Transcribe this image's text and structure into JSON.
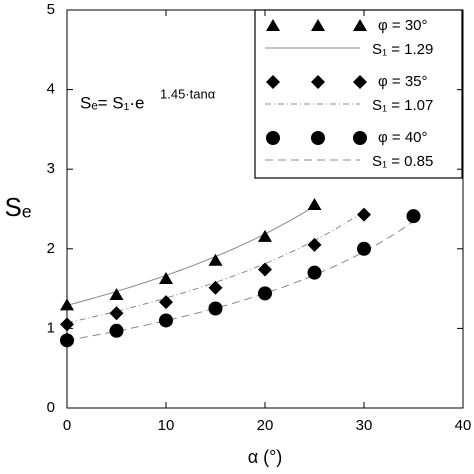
{
  "chart_data": {
    "type": "scatter",
    "xlabel": "α (°)",
    "ylabel": "Sₑ",
    "annotation": {
      "base": "Sₑ= S₁·e",
      "exponent": "1.45·tanα"
    },
    "fit_coefficient": 1.45,
    "xlim": [
      0,
      40
    ],
    "xticks": [
      0,
      10,
      20,
      30,
      40
    ],
    "ylim": [
      0,
      5
    ],
    "yticks": [
      0,
      1,
      2,
      3,
      4,
      5
    ],
    "legend": "upper right",
    "series": [
      {
        "name": "φ = 30°",
        "marker": "triangle",
        "color": "#000000",
        "line_style": "solid",
        "fit_label": {
          "value": 1.29,
          "label": "S₁ = 1.29"
        },
        "x": [
          0,
          5,
          10,
          15,
          20,
          25
        ],
        "values": [
          1.29,
          1.42,
          1.62,
          1.85,
          2.15,
          2.55
        ]
      },
      {
        "name": "φ = 35°",
        "marker": "diamond",
        "color": "#000000",
        "line_style": "dashdot",
        "fit_label": {
          "value": 1.07,
          "label": "S₁ = 1.07"
        },
        "x": [
          0,
          5,
          10,
          15,
          20,
          25,
          30
        ],
        "values": [
          1.05,
          1.19,
          1.33,
          1.51,
          1.74,
          2.05,
          2.43
        ]
      },
      {
        "name": "φ = 40°",
        "marker": "circle",
        "color": "#000000",
        "line_style": "dashed",
        "fit_label": {
          "value": 0.85,
          "label": "S₁ = 0.85"
        },
        "x": [
          0,
          5,
          10,
          15,
          20,
          25,
          30,
          35
        ],
        "values": [
          0.85,
          0.97,
          1.1,
          1.25,
          1.44,
          1.7,
          2.0,
          2.41
        ]
      }
    ]
  }
}
